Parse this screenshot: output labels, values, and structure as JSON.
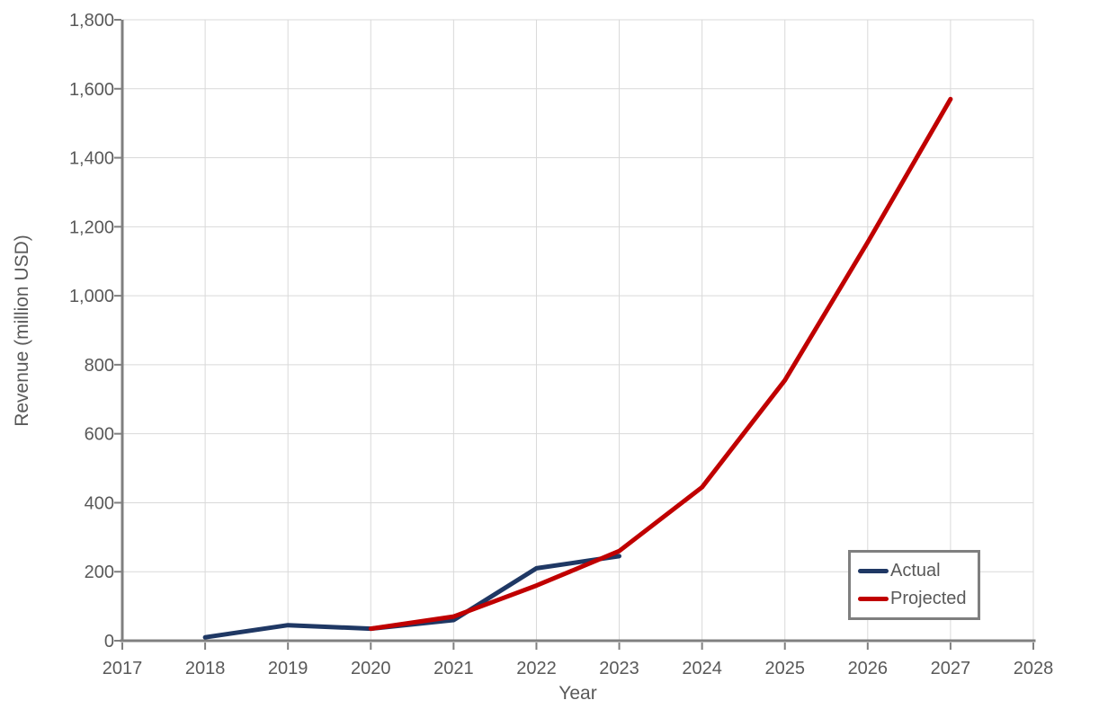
{
  "chart_data": {
    "type": "line",
    "title": "",
    "xlabel": "Year",
    "ylabel": "Revenue (million USD)",
    "xlim": [
      2017,
      2028
    ],
    "ylim": [
      0,
      1800
    ],
    "grid": true,
    "legend_position": "inside-bottom-right",
    "x_ticks": [
      {
        "value": 2017,
        "label": "2017"
      },
      {
        "value": 2018,
        "label": "2018"
      },
      {
        "value": 2019,
        "label": "2019"
      },
      {
        "value": 2020,
        "label": "2020"
      },
      {
        "value": 2021,
        "label": "2021"
      },
      {
        "value": 2022,
        "label": "2022"
      },
      {
        "value": 2023,
        "label": "2023"
      },
      {
        "value": 2024,
        "label": "2024"
      },
      {
        "value": 2025,
        "label": "2025"
      },
      {
        "value": 2026,
        "label": "2026"
      },
      {
        "value": 2027,
        "label": "2027"
      },
      {
        "value": 2028,
        "label": "2028"
      }
    ],
    "y_ticks": [
      {
        "value": 0,
        "label": "0"
      },
      {
        "value": 200,
        "label": "200"
      },
      {
        "value": 400,
        "label": "400"
      },
      {
        "value": 600,
        "label": "600"
      },
      {
        "value": 800,
        "label": "800"
      },
      {
        "value": 1000,
        "label": "1,000"
      },
      {
        "value": 1200,
        "label": "1,200"
      },
      {
        "value": 1400,
        "label": "1,400"
      },
      {
        "value": 1600,
        "label": "1,600"
      },
      {
        "value": 1800,
        "label": "1,800"
      }
    ],
    "series": [
      {
        "name": "Actual",
        "color": "#1F3864",
        "x": [
          2018,
          2019,
          2020,
          2021,
          2022,
          2023
        ],
        "values": [
          10,
          45,
          35,
          60,
          210,
          245
        ]
      },
      {
        "name": "Projected",
        "color": "#C00000",
        "x": [
          2020,
          2021,
          2022,
          2023,
          2024,
          2025,
          2026,
          2027
        ],
        "values": [
          35,
          70,
          160,
          260,
          445,
          755,
          1155,
          1570
        ]
      }
    ]
  },
  "colors": {
    "background": "#FFFFFF",
    "actual_line": "#1F3864",
    "projected_line": "#C00000",
    "gridline": "#D9D9D9",
    "axis": "#808080",
    "tick_label": "#595959",
    "axis_title": "#595959",
    "legend_text": "#595959",
    "legend_border": "#7F7F7F"
  }
}
